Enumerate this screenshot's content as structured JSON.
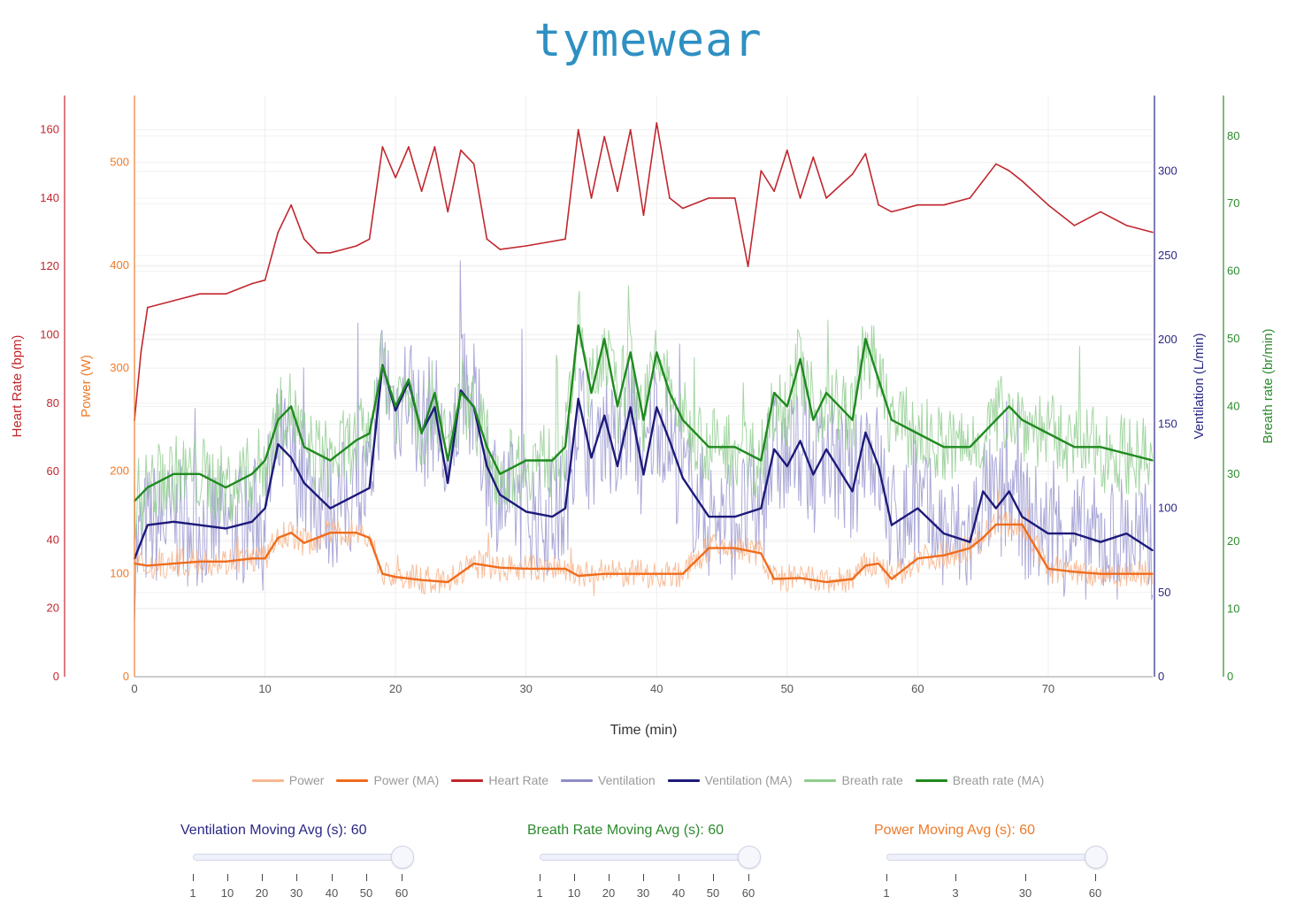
{
  "brand": "tymewear",
  "colors": {
    "power": "#f7b891",
    "power_ma": "#ef6c1c",
    "heart_rate": "#c1272d",
    "ventilation": "#8f8cc9",
    "ventilation_ma": "#1d1a7a",
    "breath_rate": "#8fcc8d",
    "breath_rate_ma": "#1f8a1f"
  },
  "legend": [
    {
      "label": "Power",
      "color": "#f7b891"
    },
    {
      "label": "Power (MA)",
      "color": "#ef6c1c"
    },
    {
      "label": "Heart Rate",
      "color": "#c1272d"
    },
    {
      "label": "Ventilation",
      "color": "#8f8cc9"
    },
    {
      "label": "Ventilation (MA)",
      "color": "#1d1a7a"
    },
    {
      "label": "Breath rate",
      "color": "#8fcc8d"
    },
    {
      "label": "Breath rate (MA)",
      "color": "#1f8a1f"
    }
  ],
  "sliders": [
    {
      "title": "Ventilation Moving Avg (s): 60",
      "color": "#2a2785",
      "ticks": [
        "1",
        "10",
        "20",
        "30",
        "40",
        "50",
        "60"
      ],
      "value": 60
    },
    {
      "title": "Breath Rate Moving Avg (s): 60",
      "color": "#2d8a2d",
      "ticks": [
        "1",
        "10",
        "20",
        "30",
        "40",
        "50",
        "60"
      ],
      "value": 60
    },
    {
      "title": "Power Moving Avg (s): 60",
      "color": "#ef7a2a",
      "ticks": [
        "1",
        "3",
        "30",
        "60"
      ],
      "value": 60
    }
  ],
  "chart_data": {
    "type": "line",
    "xlabel": "Time (min)",
    "xlim": [
      0,
      78
    ],
    "x_ticks": [
      "0",
      "10",
      "20",
      "30",
      "40",
      "50",
      "60",
      "70"
    ],
    "axes": {
      "heart_rate": {
        "label": "Heart Rate (bpm)",
        "range": [
          0,
          170
        ],
        "ticks": [
          "0",
          "20",
          "40",
          "60",
          "80",
          "100",
          "120",
          "140",
          "160"
        ],
        "color": "#c1272d"
      },
      "power": {
        "label": "Power (W)",
        "range": [
          0,
          565
        ],
        "ticks": [
          "0",
          "100",
          "200",
          "300",
          "400",
          "500"
        ],
        "color": "#ef7a2a"
      },
      "ventilation": {
        "label": "Ventilation (L/min)",
        "range": [
          0,
          345
        ],
        "ticks": [
          "0",
          "50",
          "100",
          "150",
          "200",
          "250",
          "300"
        ],
        "color": "#2a2785"
      },
      "breath_rate": {
        "label": "Breath rate (br/min)",
        "range": [
          0,
          86
        ],
        "ticks": [
          "0",
          "10",
          "20",
          "30",
          "40",
          "50",
          "60",
          "70",
          "80"
        ],
        "color": "#2d8a2d"
      }
    },
    "series": [
      {
        "name": "Heart Rate",
        "axis": "heart_rate",
        "x": [
          0,
          0.5,
          1,
          3,
          5,
          7,
          9,
          10,
          11,
          12,
          13,
          14,
          15,
          17,
          18,
          19,
          20,
          21,
          22,
          23,
          24,
          25,
          26,
          27,
          28,
          30,
          33,
          34,
          35,
          36,
          37,
          38,
          39,
          40,
          41,
          42,
          44,
          46,
          47,
          48,
          49,
          50,
          51,
          52,
          53,
          55,
          56,
          57,
          58,
          60,
          62,
          64,
          66,
          67,
          68,
          70,
          72,
          74,
          76,
          78
        ],
        "values": [
          75,
          95,
          108,
          110,
          112,
          112,
          115,
          116,
          130,
          138,
          128,
          124,
          124,
          126,
          128,
          155,
          146,
          155,
          142,
          155,
          136,
          154,
          150,
          128,
          125,
          126,
          128,
          160,
          140,
          158,
          142,
          160,
          135,
          162,
          140,
          137,
          140,
          140,
          120,
          148,
          142,
          154,
          140,
          152,
          140,
          147,
          153,
          138,
          136,
          138,
          138,
          140,
          150,
          148,
          145,
          138,
          132,
          136,
          132,
          130
        ]
      },
      {
        "name": "Power (MA)",
        "axis": "power",
        "x": [
          0,
          1,
          3,
          5,
          7,
          9,
          10,
          11,
          12,
          13,
          15,
          17,
          18,
          19,
          20,
          22,
          24,
          26,
          28,
          30,
          33,
          34,
          36,
          38,
          40,
          42,
          44,
          46,
          48,
          49,
          51,
          53,
          55,
          56,
          57,
          58,
          60,
          62,
          64,
          65,
          66,
          67,
          68,
          70,
          72,
          74,
          76,
          78
        ],
        "values": [
          110,
          108,
          110,
          112,
          112,
          115,
          115,
          135,
          140,
          130,
          140,
          140,
          135,
          100,
          97,
          94,
          92,
          110,
          106,
          105,
          105,
          98,
          100,
          100,
          100,
          100,
          125,
          125,
          120,
          95,
          96,
          92,
          95,
          108,
          110,
          95,
          115,
          118,
          125,
          135,
          148,
          148,
          148,
          105,
          102,
          100,
          100,
          100
        ]
      },
      {
        "name": "Ventilation (MA)",
        "axis": "ventilation",
        "x": [
          0,
          1,
          3,
          5,
          7,
          9,
          10,
          11,
          12,
          13,
          15,
          17,
          18,
          19,
          20,
          21,
          22,
          23,
          24,
          25,
          26,
          27,
          28,
          30,
          32,
          33,
          34,
          35,
          36,
          37,
          38,
          39,
          40,
          41,
          42,
          44,
          46,
          48,
          49,
          50,
          51,
          52,
          53,
          55,
          56,
          57,
          58,
          60,
          62,
          64,
          65,
          66,
          67,
          68,
          70,
          72,
          74,
          76,
          78
        ],
        "values": [
          70,
          90,
          92,
          90,
          88,
          92,
          100,
          138,
          130,
          115,
          100,
          108,
          112,
          185,
          158,
          175,
          145,
          160,
          115,
          170,
          160,
          125,
          108,
          98,
          95,
          100,
          165,
          130,
          155,
          125,
          160,
          120,
          160,
          140,
          118,
          95,
          95,
          100,
          135,
          125,
          140,
          120,
          135,
          110,
          145,
          125,
          90,
          100,
          85,
          80,
          110,
          100,
          110,
          95,
          85,
          85,
          80,
          85,
          75
        ]
      },
      {
        "name": "Breath rate (MA)",
        "axis": "breath_rate",
        "x": [
          0,
          1,
          3,
          5,
          7,
          9,
          10,
          11,
          12,
          13,
          15,
          17,
          18,
          19,
          20,
          21,
          22,
          23,
          24,
          25,
          26,
          27,
          28,
          30,
          32,
          33,
          34,
          35,
          36,
          37,
          38,
          39,
          40,
          41,
          42,
          44,
          46,
          48,
          49,
          50,
          51,
          52,
          53,
          55,
          56,
          57,
          58,
          60,
          62,
          64,
          65,
          66,
          67,
          68,
          70,
          72,
          74,
          76,
          78
        ],
        "values": [
          26,
          28,
          30,
          30,
          28,
          30,
          32,
          38,
          40,
          34,
          32,
          35,
          36,
          46,
          40,
          44,
          36,
          42,
          32,
          42,
          40,
          34,
          30,
          32,
          32,
          34,
          52,
          42,
          50,
          40,
          48,
          38,
          48,
          42,
          38,
          34,
          34,
          32,
          42,
          40,
          47,
          38,
          42,
          38,
          50,
          44,
          38,
          36,
          34,
          34,
          36,
          38,
          40,
          38,
          36,
          34,
          34,
          33,
          32
        ]
      }
    ],
    "raw_series": [
      {
        "name": "Power",
        "axis": "power",
        "note": "noisy raw signal around Power (MA)"
      },
      {
        "name": "Ventilation",
        "axis": "ventilation",
        "note": "noisy raw signal around Ventilation (MA)"
      },
      {
        "name": "Breath rate",
        "axis": "breath_rate",
        "note": "noisy raw signal around Breath rate (MA)"
      }
    ]
  }
}
